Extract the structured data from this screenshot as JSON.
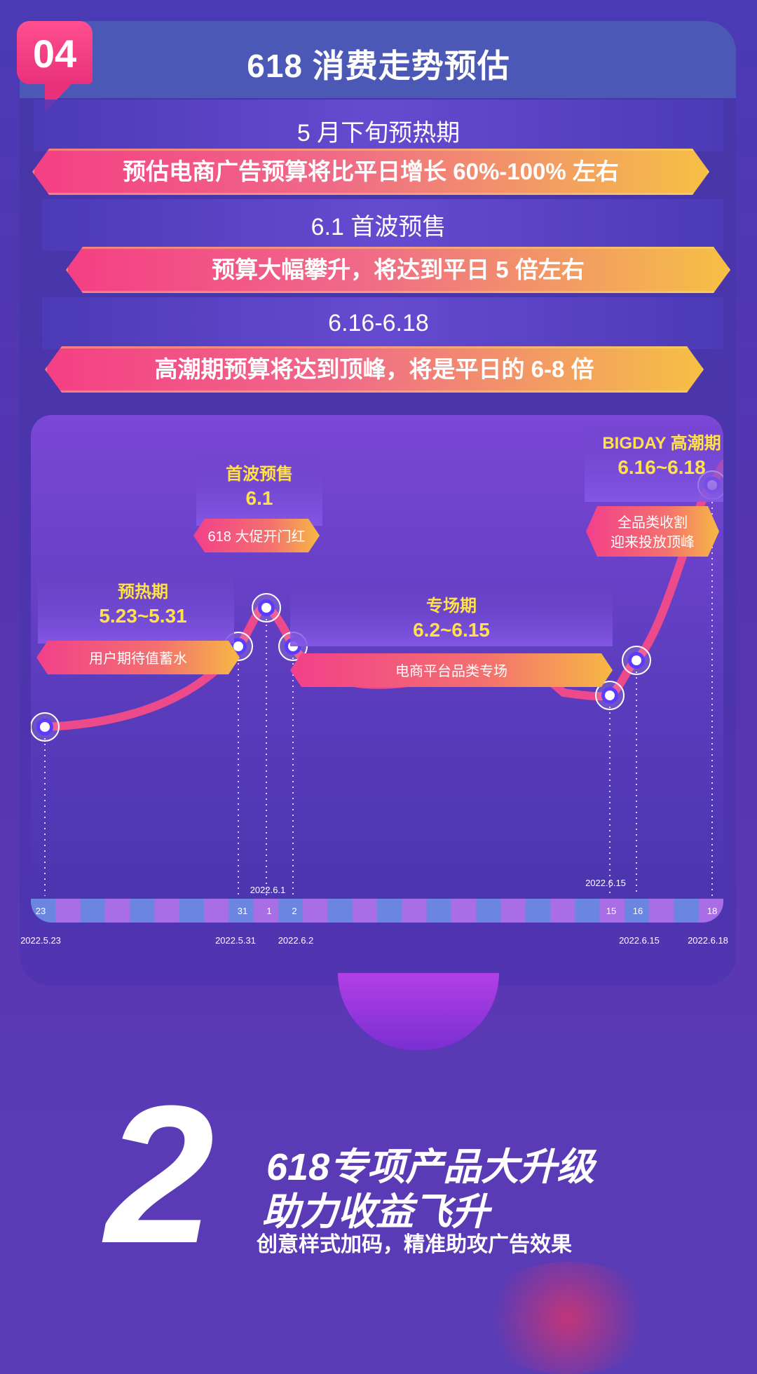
{
  "header": {
    "number": "04",
    "title": "618 消费走势预估"
  },
  "phases": [
    {
      "period": "5 月下旬预热期",
      "text": "预估电商广告预算将比平日增长 60%-100% 左右"
    },
    {
      "period": "6.1 首波预售",
      "text": "预算大幅攀升，将达到平日 5 倍左右"
    },
    {
      "period": "6.16-6.18",
      "text": "高潮期预算将达到顶峰，将是平日的 6-8 倍"
    }
  ],
  "chart_data": {
    "type": "line",
    "callouts": [
      {
        "title": "预热期",
        "range": "5.23~5.31",
        "tag": "用户期待值蓄水"
      },
      {
        "title": "首波预售",
        "range": "6.1",
        "tag": "618 大促开门红"
      },
      {
        "title": "专场期",
        "range": "6.2~6.15",
        "tag": "电商平台品类专场"
      },
      {
        "title": "BIGDAY 高潮期",
        "range": "6.16~6.18",
        "tag": "全品类收割",
        "tag2": "迎来投放顶峰"
      }
    ],
    "timeline_labels": [
      "23",
      "31",
      "1",
      "2",
      "15",
      "16",
      "18"
    ],
    "date_labels_top": [
      "2022.6.1",
      "2022.6.15"
    ],
    "date_labels_bottom": [
      "2022.5.23",
      "2022.5.31",
      "2022.6.2",
      "2022.6.15",
      "2022.6.18"
    ],
    "points": [
      {
        "date": "2022.5.23",
        "level": 0.23
      },
      {
        "date": "2022.5.31",
        "level": 0.46
      },
      {
        "date": "2022.6.1",
        "level": 0.57
      },
      {
        "date": "2022.6.2",
        "level": 0.46
      },
      {
        "date": "2022.6.15",
        "level": 0.32
      },
      {
        "date": "2022.6.16",
        "level": 0.42
      },
      {
        "date": "2022.6.18",
        "level": 0.92
      }
    ],
    "colors": {
      "line": "#ec4a8a",
      "point": "#ffffff",
      "point_core": "#5b3bff"
    }
  },
  "promo": {
    "number": "2",
    "line1": "618专项产品大升级",
    "line2": "助力收益飞升",
    "line3": "创意样式加码，精准助攻广告效果"
  }
}
